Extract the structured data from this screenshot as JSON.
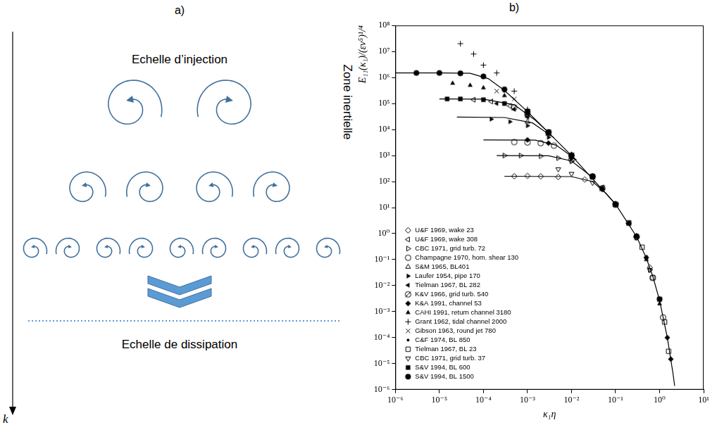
{
  "diagram": {
    "panel": "a)",
    "top_label": "Echelle d’injection",
    "side_label": "Zone inertielle",
    "bottom_label": "Echelle de dissipation",
    "axis_label": "k",
    "eddies_per_row": [
      2,
      4,
      9
    ]
  },
  "chart_data": {
    "panel": "b)",
    "type": "scatter",
    "x_label": "κ₁η",
    "y_label": "E₁₁(κ₁)/(εν⁵)¹/⁴",
    "log": true,
    "grid": false,
    "legend": "lower left",
    "xlim": [
      1e-06,
      10
    ],
    "ylim": [
      1e-06,
      100000000
    ],
    "xticks": [
      {
        "value": 1e-06,
        "label": "10⁻⁶"
      },
      {
        "value": 1e-05,
        "label": "10⁻⁵"
      },
      {
        "value": 0.0001,
        "label": "10⁻⁴"
      },
      {
        "value": 0.001,
        "label": "10⁻³"
      },
      {
        "value": 0.01,
        "label": "10⁻²"
      },
      {
        "value": 0.1,
        "label": "10⁻¹"
      },
      {
        "value": 1,
        "label": "10⁰"
      },
      {
        "value": 10,
        "label": "10¹"
      }
    ],
    "yticks": [
      {
        "value": 1e-06,
        "label": "10⁻⁶"
      },
      {
        "value": 1e-05,
        "label": "10⁻⁵"
      },
      {
        "value": 0.0001,
        "label": "10⁻⁴"
      },
      {
        "value": 0.001,
        "label": "10⁻³"
      },
      {
        "value": 0.01,
        "label": "10⁻²"
      },
      {
        "value": 0.1,
        "label": "10⁻¹"
      },
      {
        "value": 1,
        "label": "10⁰"
      },
      {
        "value": 10,
        "label": "10¹"
      },
      {
        "value": 100,
        "label": "10²"
      },
      {
        "value": 1000,
        "label": "10³"
      },
      {
        "value": 10000,
        "label": "10⁴"
      },
      {
        "value": 100000,
        "label": "10⁵"
      },
      {
        "value": 1000000,
        "label": "10⁶"
      },
      {
        "value": 10000000,
        "label": "10⁷"
      },
      {
        "value": 100000000,
        "label": "10⁸"
      }
    ],
    "series": [
      {
        "type": "line",
        "color": "#000000",
        "line_style": "solid",
        "x": [
          1e-06,
          1e-05,
          5e-05,
          0.00013,
          0.0003,
          0.001,
          0.01,
          0.1,
          0.3,
          0.5,
          0.7,
          1,
          1.5,
          2,
          2.2
        ],
        "values": [
          1500000,
          1500000,
          1450000,
          900000,
          320000,
          49000,
          1000,
          13.5,
          0.77,
          0.115,
          0.023,
          0.0027,
          0.0001,
          4.6e-06,
          1.4e-06
        ]
      },
      {
        "type": "line",
        "color": "#000000",
        "line_style": "solid",
        "x": [
          1e-05,
          0.0001,
          0.0005,
          0.0015,
          0.003
        ],
        "values": [
          150000,
          148000,
          90000,
          23000,
          7800
        ]
      },
      {
        "type": "line",
        "color": "#000000",
        "line_style": "solid",
        "x": [
          2.5e-05,
          0.0003,
          0.0013,
          0.004
        ],
        "values": [
          30000,
          29000,
          18000,
          4800
        ]
      },
      {
        "type": "line",
        "color": "#000000",
        "line_style": "solid",
        "x": [
          0.0001,
          0.0015,
          0.0045,
          0.013
        ],
        "values": [
          4000,
          3900,
          2500,
          680
        ]
      },
      {
        "type": "line",
        "color": "#000000",
        "line_style": "solid",
        "x": [
          0.0002,
          0.003,
          0.01,
          0.03
        ],
        "values": [
          1000,
          980,
          620,
          145
        ]
      },
      {
        "type": "line",
        "color": "#000000",
        "line_style": "solid",
        "x": [
          0.0003,
          0.01,
          0.03,
          0.06,
          0.1
        ],
        "values": [
          160,
          155,
          100,
          36,
          13.5
        ]
      },
      {
        "name": "U&F 1969, wake 23",
        "marker": "diamond_open",
        "color": "#000000",
        "x": [
          0.0005,
          0.001,
          0.002,
          0.005,
          0.02,
          0.1,
          0.3,
          0.6,
          1
        ],
        "values": [
          160,
          165,
          158,
          150,
          120,
          14,
          0.8,
          0.05,
          0.003
        ]
      },
      {
        "name": "U&F 1969, wake 308",
        "marker": "triangle_left_open",
        "color": "#000000",
        "x": [
          6e-05,
          0.00015,
          0.0004,
          0.001,
          0.003,
          0.01,
          0.05,
          0.2
        ],
        "values": [
          140000,
          120000,
          80000,
          35000,
          8000,
          1000,
          60,
          2.5
        ]
      },
      {
        "name": "CBC 1971, grid turb. 72",
        "marker": "triangle_right_open",
        "color": "#000000",
        "x": [
          0.0003,
          0.0007,
          0.002,
          0.005,
          0.01,
          0.03,
          0.1,
          0.3,
          0.6
        ],
        "values": [
          1000,
          1000,
          950,
          800,
          600,
          150,
          14,
          0.7,
          0.04
        ]
      },
      {
        "name": "Champagne 1970, hom. shear 130",
        "marker": "circle_open",
        "color": "#000000",
        "x": [
          0.0005,
          0.001,
          0.002,
          0.004,
          0.01,
          0.03,
          0.1,
          0.3,
          0.7,
          1.2
        ],
        "values": [
          3300,
          3200,
          3000,
          2400,
          700,
          160,
          13,
          0.75,
          0.02,
          0.0006
        ]
      },
      {
        "name": "S&M 1965, BL401",
        "marker": "triangle_up_open",
        "color": "#000000",
        "x": [
          0.001,
          0.003,
          0.01,
          0.03,
          0.1,
          0.3
        ],
        "values": [
          20000,
          7000,
          1000,
          150,
          13,
          0.8
        ]
      },
      {
        "name": "Laufer 1954, pipe 170",
        "marker": "triangle_right_filled",
        "color": "#000000",
        "x": [
          0.00015,
          0.0004,
          0.001,
          0.003,
          0.01,
          0.05,
          0.2
        ],
        "values": [
          25000,
          20000,
          14000,
          5000,
          900,
          55,
          2.5
        ]
      },
      {
        "name": "Tielman 1967, BL 282",
        "marker": "triangle_left_filled",
        "color": "#000000",
        "x": [
          0.0002,
          0.0005,
          0.001,
          0.003,
          0.01,
          0.05,
          0.2,
          0.5
        ],
        "values": [
          100000,
          60000,
          30000,
          7000,
          1000,
          50,
          2.4,
          0.12
        ]
      },
      {
        "name": "K&V 1966, grid turb. 540",
        "marker": "circle_slash",
        "color": "#000000",
        "x": [
          0.0005,
          0.001,
          0.003,
          0.01,
          0.05
        ],
        "values": [
          70000,
          40000,
          7500,
          1000,
          55
        ]
      },
      {
        "name": "K&A 1991, channel 53",
        "marker": "diamond_filled",
        "color": "#000000",
        "x": [
          0.001,
          0.003,
          0.01,
          0.05,
          0.2,
          0.5,
          1,
          1.5,
          1.8
        ],
        "values": [
          4000,
          3000,
          800,
          50,
          2.5,
          0.12,
          0.003,
          0.0001,
          1.5e-05
        ]
      },
      {
        "name": "CAHI 1991, return channel 3180",
        "marker": "triangle_up_filled",
        "color": "#000000",
        "x": [
          2e-05,
          5e-05,
          0.0001,
          0.0003,
          0.001,
          0.003,
          0.01,
          0.05,
          0.2,
          0.5,
          1
        ],
        "values": [
          600000,
          500000,
          400000,
          200000,
          40000,
          7000,
          1000,
          55,
          2.5,
          0.1,
          0.002
        ]
      },
      {
        "name": "Grant 1962, tidal channel 2000",
        "marker": "plus",
        "color": "#000000",
        "x": [
          3e-05,
          6e-05,
          0.0001,
          0.0002,
          0.0005,
          0.001,
          0.003,
          0.01,
          0.03
        ],
        "values": [
          20000000,
          8000000,
          3000000,
          1500000,
          300000,
          60000,
          8000,
          1100,
          160
        ]
      },
      {
        "name": "Gibson 1963, round jet 780",
        "marker": "cross",
        "color": "#000000",
        "x": [
          0.0002,
          0.0005,
          0.001,
          0.003,
          0.01,
          0.05,
          0.2
        ],
        "values": [
          300000,
          150000,
          50000,
          8000,
          1000,
          55,
          2.4
        ]
      },
      {
        "name": "C&F 1974, BL 850",
        "marker": "dot",
        "color": "#000000",
        "x": [
          0.0003,
          0.001,
          0.003,
          0.01
        ],
        "values": [
          300000,
          50000,
          8000,
          1000
        ]
      },
      {
        "name": "Tielman 1967, BL 23",
        "marker": "square_open",
        "color": "#000000",
        "x": [
          0.03,
          0.1,
          0.2,
          0.4,
          0.7,
          1,
          1.3,
          1.6
        ],
        "values": [
          150,
          13,
          2.6,
          0.3,
          0.02,
          0.003,
          0.0004,
          3e-05
        ]
      },
      {
        "name": "CBC 1971, grid turb. 37",
        "marker": "triangle_down_open",
        "color": "#000000",
        "x": [
          0.005,
          0.01,
          0.03,
          0.1,
          0.3,
          0.6,
          1
        ],
        "values": [
          300,
          200,
          90,
          13,
          0.7,
          0.04,
          0.003
        ]
      },
      {
        "name": "S&V 1994, BL 600",
        "marker": "square_filled",
        "color": "#000000",
        "x": [
          1.5e-05,
          3e-05,
          0.0001,
          0.0003,
          0.001,
          0.003,
          0.01,
          0.03,
          0.1,
          0.3
        ],
        "values": [
          150000,
          150000,
          140000,
          100000,
          45000,
          8000,
          1000,
          160,
          13.5,
          0.8
        ]
      },
      {
        "name": "S&V 1994, BL 1500",
        "marker": "circle_filled",
        "color": "#000000",
        "x": [
          3e-06,
          1e-05,
          3e-05,
          0.0001,
          0.0003,
          0.001,
          0.003,
          0.01
        ],
        "values": [
          1500000,
          1500000,
          1450000,
          1100000,
          350000,
          50000,
          8000,
          1000
        ]
      }
    ]
  }
}
